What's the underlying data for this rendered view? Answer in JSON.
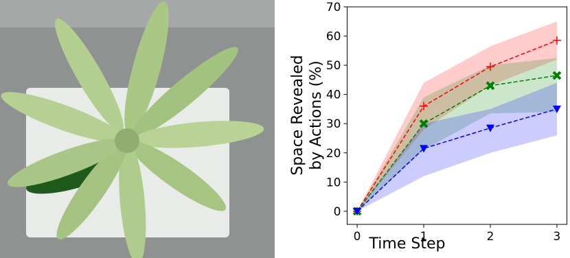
{
  "chart_data": {
    "type": "line",
    "xlabel": "Time Step",
    "ylabel": [
      "Space Revealed",
      "by Actions (%)"
    ],
    "x": [
      0,
      1,
      2,
      3
    ],
    "xlim": [
      -0.15,
      3.15
    ],
    "xticks": [
      0,
      1,
      2,
      3
    ],
    "ylim": [
      -4.5,
      70
    ],
    "yticks": [
      0,
      10,
      20,
      30,
      40,
      50,
      60,
      70
    ],
    "grid": false,
    "series": [
      {
        "color": "#ff0000",
        "marker": "plus",
        "values": [
          0,
          36,
          49.5,
          58.5
        ],
        "upper": [
          0,
          44,
          56.5,
          65
        ],
        "lower": [
          0,
          28,
          43,
          52
        ]
      },
      {
        "color": "#008000",
        "marker": "x",
        "values": [
          0,
          30,
          43,
          46.5
        ],
        "upper": [
          0,
          39,
          50,
          52.5
        ],
        "lower": [
          0,
          21,
          33.5,
          34
        ]
      },
      {
        "color": "#0000ff",
        "marker": "triangle_down",
        "values": [
          0,
          21.5,
          28.5,
          35
        ],
        "upper": [
          0,
          30,
          35,
          44
        ],
        "lower": [
          0,
          12,
          20,
          26
        ]
      }
    ]
  }
}
